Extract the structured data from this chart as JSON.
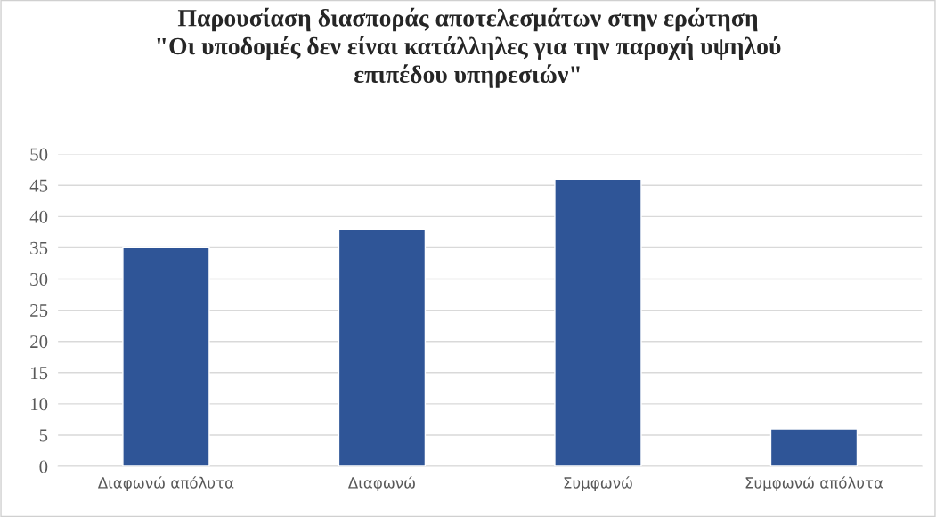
{
  "chart_data": {
    "type": "bar",
    "title": "Παρουσίαση διασποράς αποτελεσμάτων στην ερώτηση\n\"Οι υποδομές δεν είναι κατάλληλες για την παροχή υψηλού\nεπιπέδου υπηρεσιών\"",
    "categories": [
      "Διαφωνώ απόλυτα",
      "Διαφωνώ",
      "Συμφωνώ",
      "Συμφωνώ απόλυτα"
    ],
    "values": [
      35,
      38,
      46,
      6
    ],
    "color": "#2f5597",
    "ylim": [
      0,
      50
    ],
    "yticks": [
      0,
      5,
      10,
      15,
      20,
      25,
      30,
      35,
      40,
      45,
      50
    ],
    "grid": "y"
  }
}
